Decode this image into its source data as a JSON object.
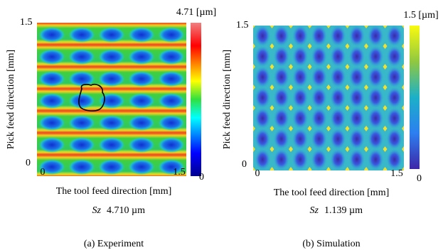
{
  "panels": [
    {
      "caption": "(a) Experiment",
      "x_label": "The tool feed direction [mm]",
      "y_label": "Pick feed direction [mm]",
      "x_ticks": [
        "0",
        "1.5"
      ],
      "y_ticks": [
        "0",
        "1.5"
      ],
      "colorbar_max": "4.71 [µm]",
      "colorbar_min": "0",
      "sz_symbol": "Sz",
      "sz_value": "4.710 µm"
    },
    {
      "caption": "(b) Simulation",
      "x_label": "The tool feed direction [mm]",
      "y_label": "Pick feed direction [mm]",
      "x_ticks": [
        "0",
        "1.5"
      ],
      "y_ticks": [
        "0",
        "1.5"
      ],
      "colorbar_max": "1.5 [µm]",
      "colorbar_min": "0",
      "sz_symbol": "Sz",
      "sz_value": "1.139 µm"
    }
  ]
}
